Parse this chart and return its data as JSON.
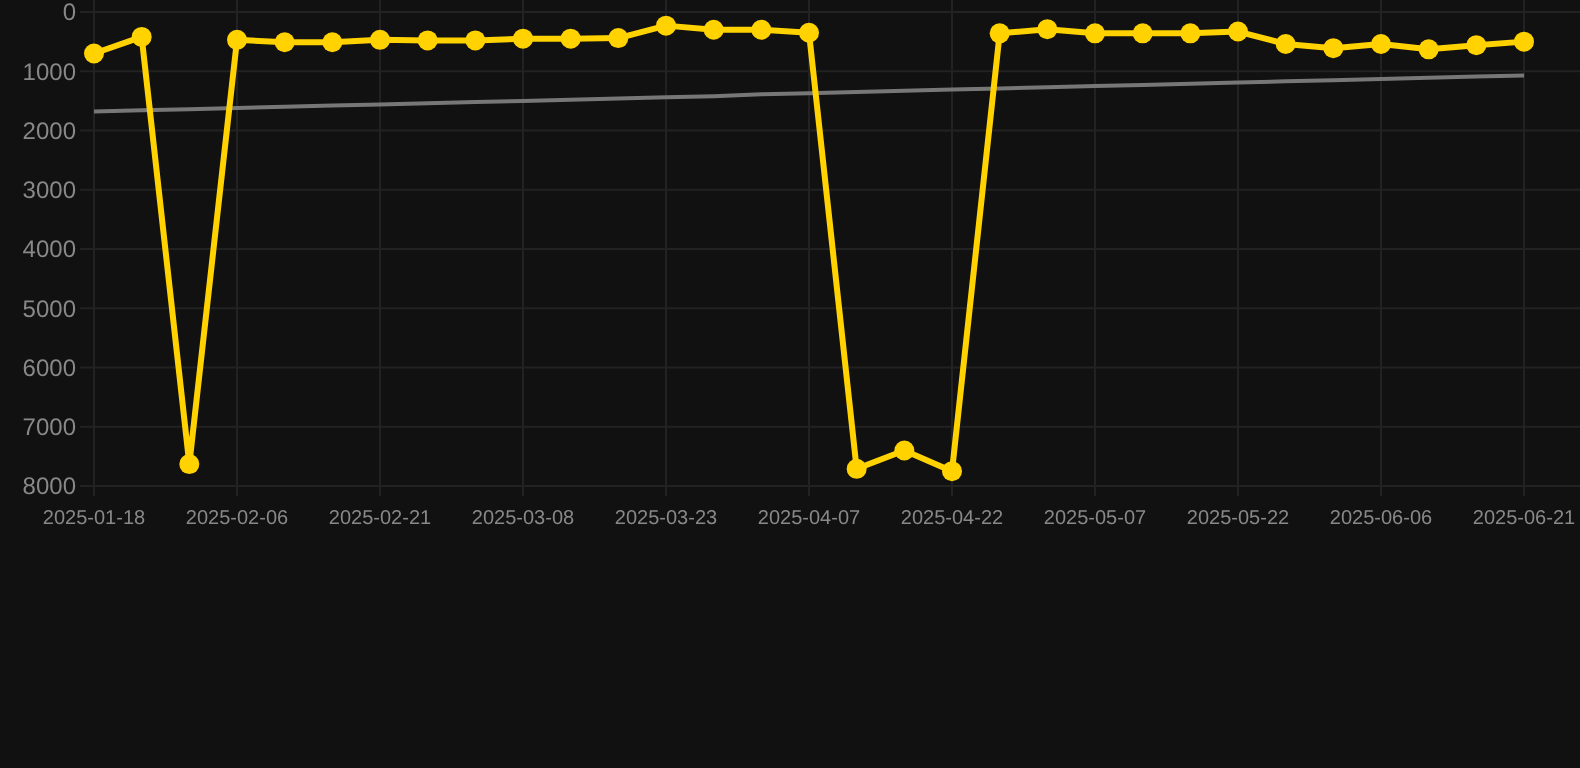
{
  "chart_data": {
    "type": "line",
    "categories": [
      "2025-01-18",
      null,
      null,
      "2025-02-06",
      null,
      null,
      "2025-02-21",
      null,
      null,
      "2025-03-08",
      null,
      null,
      "2025-03-23",
      null,
      null,
      "2025-04-07",
      null,
      null,
      "2025-04-22",
      null,
      null,
      "2025-05-07",
      null,
      null,
      "2025-05-22",
      null,
      null,
      "2025-06-06",
      null,
      null,
      "2025-06-21"
    ],
    "series": [
      {
        "color": "#ffd200",
        "marker": "circle",
        "values": [
          700,
          420,
          7630,
          470,
          510,
          510,
          470,
          480,
          480,
          450,
          450,
          440,
          230,
          300,
          300,
          350,
          7710,
          7400,
          7750,
          360,
          290,
          360,
          360,
          360,
          330,
          540,
          610,
          540,
          630,
          560,
          500
        ]
      },
      {
        "color": "#777777",
        "marker": "none",
        "values": [
          1680,
          1660,
          1640,
          1620,
          1600,
          1580,
          1560,
          1540,
          1520,
          1500,
          1480,
          1460,
          1440,
          1420,
          1390,
          1370,
          1350,
          1330,
          1310,
          1290,
          1270,
          1250,
          1230,
          1210,
          1190,
          1170,
          1150,
          1130,
          1110,
          1090,
          1070
        ]
      }
    ],
    "ylim": [
      8000,
      0
    ],
    "yticks": [
      0,
      1000,
      2000,
      3000,
      4000,
      5000,
      6000,
      7000,
      8000
    ],
    "grid": true
  }
}
